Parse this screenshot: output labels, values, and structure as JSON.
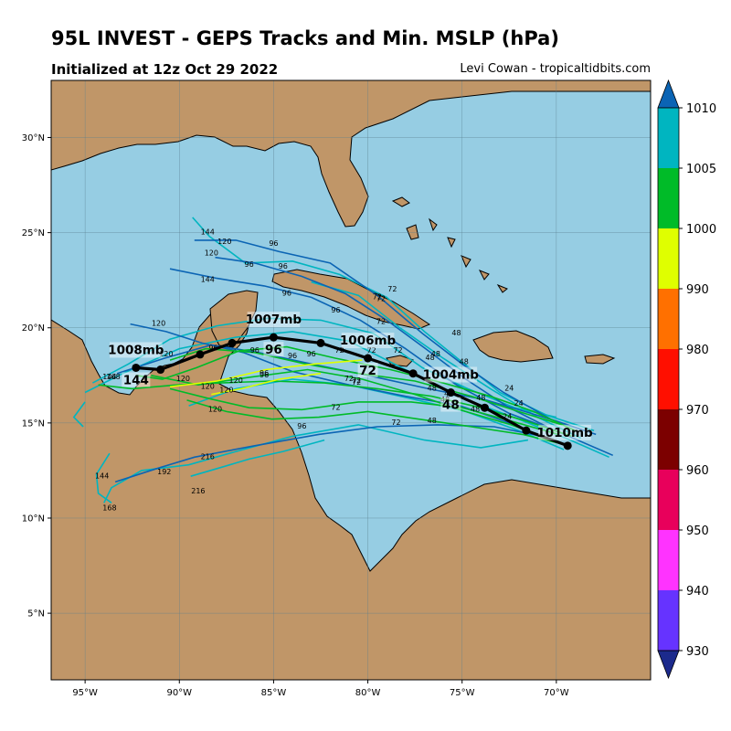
{
  "header": {
    "title": "95L INVEST - GEPS Tracks and Min. MSLP (hPa)",
    "init": "Initialized at 12z Oct 29 2022",
    "credit": "Levi Cowan - tropicaltidbits.com"
  },
  "map": {
    "lon_range": [
      -96.8,
      -65.0
    ],
    "lat_range": [
      1.5,
      33.0
    ],
    "lon_ticks": [
      {
        "v": -95,
        "label": "95°W"
      },
      {
        "v": -90,
        "label": "90°W"
      },
      {
        "v": -85,
        "label": "85°W"
      },
      {
        "v": -80,
        "label": "80°W"
      },
      {
        "v": -75,
        "label": "75°W"
      },
      {
        "v": -70,
        "label": "70°W"
      }
    ],
    "lat_ticks": [
      {
        "v": 30,
        "label": "30°N"
      },
      {
        "v": 25,
        "label": "25°N"
      },
      {
        "v": 20,
        "label": "20°N"
      },
      {
        "v": 15,
        "label": "15°N"
      },
      {
        "v": 10,
        "label": "10°N"
      },
      {
        "v": 5,
        "label": "5°N"
      }
    ],
    "colors": {
      "ocean": "#96cde3",
      "land": "#c09668",
      "grid": "#5a7f8f"
    }
  },
  "colorbar": {
    "levels": [
      "1010",
      "1005",
      "1000",
      "990",
      "980",
      "970",
      "960",
      "950",
      "940",
      "930"
    ],
    "colors": [
      "#0b64b4",
      "#00b5c0",
      "#00bb28",
      "#dfff00",
      "#ff7000",
      "#ff0f00",
      "#7c0000",
      "#e8005b",
      "#ff33ff",
      "#6633ff",
      "#1c2a8c"
    ]
  },
  "ensemble_mean": {
    "points": [
      {
        "lon": -69.4,
        "lat": 13.8,
        "mb": "1010mb",
        "hour": ""
      },
      {
        "lon": -71.6,
        "lat": 14.6,
        "mb": "",
        "hour": ""
      },
      {
        "lon": -73.8,
        "lat": 15.8,
        "mb": "",
        "hour": ""
      },
      {
        "lon": -75.6,
        "lat": 16.6,
        "mb": "1004mb",
        "hour": "48"
      },
      {
        "lon": -77.6,
        "lat": 17.6,
        "mb": "",
        "hour": ""
      },
      {
        "lon": -80.0,
        "lat": 18.4,
        "mb": "1006mb",
        "hour": "72"
      },
      {
        "lon": -82.5,
        "lat": 19.2,
        "mb": "",
        "hour": ""
      },
      {
        "lon": -85.0,
        "lat": 19.5,
        "mb": "1007mb",
        "hour": "96"
      },
      {
        "lon": -87.2,
        "lat": 19.2,
        "mb": "",
        "hour": ""
      },
      {
        "lon": -88.9,
        "lat": 18.6,
        "mb": "",
        "hour": ""
      },
      {
        "lon": -91.0,
        "lat": 17.8,
        "mb": "",
        "hour": ""
      },
      {
        "lon": -92.3,
        "lat": 17.9,
        "mb": "1008mb",
        "hour": "144"
      }
    ]
  },
  "tracks": [
    {
      "color": "#00b5c0",
      "pts": [
        [
          -67.2,
          13.2
        ],
        [
          -69.5,
          14.2
        ],
        [
          -72,
          15.2
        ],
        [
          -75,
          16.3
        ],
        [
          -78,
          17.8
        ],
        [
          -81,
          19.3
        ],
        [
          -84,
          19.8
        ],
        [
          -87,
          19.5
        ],
        [
          -90,
          18.9
        ],
        [
          -93,
          17.6
        ],
        [
          -95,
          16.6
        ]
      ],
      "labels": [
        [
          -72.6,
          15.2,
          "24"
        ],
        [
          -75.7,
          16.4,
          "48"
        ],
        [
          -79.8,
          18.7,
          "72"
        ]
      ]
    },
    {
      "color": "#00b5c0",
      "pts": [
        [
          -68,
          14.6
        ],
        [
          -70.5,
          15.4
        ],
        [
          -73,
          16.6
        ],
        [
          -75,
          18.2
        ],
        [
          -77,
          19.8
        ],
        [
          -79,
          21.6
        ],
        [
          -81.5,
          22.8
        ],
        [
          -84,
          23.5
        ],
        [
          -86.5,
          23.4
        ],
        [
          -88.4,
          24.8
        ],
        [
          -89.3,
          25.8
        ]
      ],
      "labels": [
        [
          -75.3,
          19.6,
          "48"
        ],
        [
          -78.7,
          21.9,
          "72"
        ],
        [
          -84.5,
          23.1,
          "96"
        ],
        [
          -88.5,
          24.9,
          "144"
        ]
      ]
    },
    {
      "color": "#00b5c0",
      "pts": [
        [
          -68.7,
          14.2
        ],
        [
          -71,
          15.3
        ],
        [
          -73.5,
          16.8
        ],
        [
          -76,
          18.4
        ],
        [
          -78.3,
          20.0
        ],
        [
          -80.5,
          21.7
        ],
        [
          -83,
          22.4
        ]
      ],
      "labels": [
        [
          -72.5,
          16.7,
          "24"
        ],
        [
          -76.4,
          18.5,
          "48"
        ],
        [
          -79.5,
          21.5,
          "72"
        ]
      ]
    },
    {
      "color": "#00b5c0",
      "pts": [
        [
          -69.6,
          13.6
        ],
        [
          -72,
          14.6
        ],
        [
          -74.8,
          15.6
        ],
        [
          -77.8,
          16.3
        ],
        [
          -81,
          17.0
        ],
        [
          -84,
          17.3
        ],
        [
          -87,
          16.8
        ],
        [
          -89.5,
          15.9
        ]
      ],
      "labels": [
        [
          -74.3,
          15.6,
          "48"
        ],
        [
          -80.6,
          17.1,
          "72"
        ],
        [
          -85.5,
          17.4,
          "96"
        ]
      ]
    },
    {
      "color": "#00b5c0",
      "pts": [
        [
          -71.5,
          14.1
        ],
        [
          -74,
          13.7
        ],
        [
          -77,
          14.1
        ],
        [
          -80.5,
          14.9
        ],
        [
          -84,
          14.3
        ],
        [
          -87,
          13.5
        ],
        [
          -89.5,
          12.8
        ],
        [
          -92,
          12.5
        ],
        [
          -93.6,
          11.6
        ],
        [
          -94,
          10.8
        ]
      ],
      "labels": [
        [
          -83.5,
          14.7,
          "96"
        ],
        [
          -89.0,
          11.3,
          "216"
        ],
        [
          -93.7,
          10.4,
          "168"
        ]
      ]
    },
    {
      "color": "#00b5c0",
      "pts": [
        [
          -70.0,
          15.3
        ],
        [
          -72.2,
          15.8
        ],
        [
          -74.7,
          16.8
        ],
        [
          -77.1,
          17.9
        ],
        [
          -79.7,
          19.7
        ],
        [
          -82.5,
          20.4
        ],
        [
          -85.3,
          20.5
        ],
        [
          -88,
          20.1
        ],
        [
          -90.5,
          19.4
        ],
        [
          -92.7,
          18.1
        ],
        [
          -94.6,
          17.1
        ]
      ],
      "labels": [
        [
          -72.0,
          15.9,
          "24"
        ],
        [
          -76.7,
          18.3,
          "48"
        ],
        [
          -81.7,
          20.8,
          "96"
        ],
        [
          -93.7,
          17.3,
          "144"
        ]
      ]
    },
    {
      "color": "#0b64b4",
      "pts": [
        [
          -67.0,
          13.3
        ],
        [
          -69.8,
          14.5
        ],
        [
          -72.5,
          15.5
        ],
        [
          -75.3,
          17.0
        ],
        [
          -78,
          18.9
        ],
        [
          -80.4,
          20.4
        ],
        [
          -83,
          21.6
        ],
        [
          -85.5,
          22.2
        ],
        [
          -88.0,
          22.6
        ],
        [
          -90.5,
          23.1
        ]
      ],
      "labels": [
        [
          -78.4,
          18.7,
          "72"
        ],
        [
          -84.3,
          21.7,
          "96"
        ],
        [
          -88.5,
          22.4,
          "144"
        ]
      ]
    },
    {
      "color": "#0b64b4",
      "pts": [
        [
          -67.9,
          14.4
        ],
        [
          -70.3,
          15.2
        ],
        [
          -72.8,
          16.6
        ],
        [
          -75,
          18.1
        ],
        [
          -77.1,
          19.7
        ],
        [
          -79.5,
          21.7
        ],
        [
          -82,
          23.4
        ],
        [
          -84.7,
          24.0
        ],
        [
          -87.0,
          24.6
        ],
        [
          -89.2,
          24.6
        ]
      ],
      "labels": [
        [
          -74.9,
          18.1,
          "48"
        ],
        [
          -79.3,
          21.4,
          "72"
        ],
        [
          -85.0,
          24.3,
          "96"
        ],
        [
          -87.6,
          24.4,
          "120"
        ]
      ]
    },
    {
      "color": "#0b64b4",
      "pts": [
        [
          -70.5,
          14.8
        ],
        [
          -72.5,
          15.8
        ],
        [
          -74.8,
          17.3
        ],
        [
          -76.8,
          18.8
        ],
        [
          -79,
          20.4
        ],
        [
          -81.2,
          21.8
        ],
        [
          -83.5,
          22.7
        ],
        [
          -86,
          23.4
        ],
        [
          -88.1,
          23.7
        ]
      ],
      "labels": [
        [
          -79.3,
          20.2,
          "72"
        ],
        [
          -86.3,
          23.2,
          "96"
        ],
        [
          -88.3,
          23.8,
          "120"
        ]
      ]
    },
    {
      "color": "#0b64b4",
      "pts": [
        [
          -70.0,
          14.0
        ],
        [
          -72.5,
          15.0
        ],
        [
          -75.1,
          15.9
        ],
        [
          -78,
          16.4
        ],
        [
          -81,
          17.0
        ],
        [
          -84,
          17.7
        ],
        [
          -86.6,
          18.7
        ],
        [
          -88.8,
          19.2
        ],
        [
          -90.7,
          19.8
        ],
        [
          -92.6,
          20.2
        ]
      ],
      "labels": [
        [
          -81.0,
          17.2,
          "72"
        ],
        [
          -86.0,
          18.7,
          "96"
        ],
        [
          -91.1,
          20.1,
          "120"
        ]
      ]
    },
    {
      "color": "#0b64b4",
      "pts": [
        [
          -70.8,
          14.3
        ],
        [
          -73.3,
          14.8
        ],
        [
          -76.3,
          14.9
        ],
        [
          -79.5,
          14.8
        ],
        [
          -82.6,
          14.4
        ],
        [
          -86,
          13.8
        ],
        [
          -89.2,
          13.2
        ],
        [
          -91.2,
          12.6
        ],
        [
          -93.4,
          11.9
        ]
      ],
      "labels": [
        [
          -78.5,
          14.9,
          "72"
        ],
        [
          -94.1,
          12.1,
          "144"
        ],
        [
          -90.8,
          12.3,
          "192"
        ]
      ]
    },
    {
      "color": "#0b64b4",
      "pts": [
        [
          -68.5,
          14.6
        ],
        [
          -71,
          15.4
        ],
        [
          -73.7,
          16.2
        ],
        [
          -76.8,
          16.8
        ],
        [
          -80,
          17.5
        ],
        [
          -83,
          18.1
        ],
        [
          -85.8,
          18.7
        ],
        [
          -88.3,
          19.1
        ],
        [
          -90.8,
          18.4
        ],
        [
          -93.3,
          17.6
        ]
      ],
      "labels": [
        [
          -84.0,
          18.4,
          "96"
        ],
        [
          -90.7,
          18.5,
          "120"
        ]
      ]
    },
    {
      "color": "#00bb28",
      "pts": [
        [
          -69,
          14.6
        ],
        [
          -71.2,
          15.6
        ],
        [
          -73.5,
          16.4
        ],
        [
          -76,
          17.1
        ],
        [
          -78.8,
          17.8
        ],
        [
          -81.7,
          18.4
        ],
        [
          -84.3,
          19.0
        ],
        [
          -86.8,
          18.8
        ],
        [
          -89.1,
          17.9
        ],
        [
          -90.9,
          17.3
        ],
        [
          -92.3,
          17.5
        ]
      ],
      "labels": [
        [
          -81.5,
          18.7,
          "72"
        ],
        [
          -88.2,
          18.8,
          "96"
        ]
      ]
    },
    {
      "color": "#00bb28",
      "pts": [
        [
          -69.7,
          14.9
        ],
        [
          -72,
          15.6
        ],
        [
          -74.5,
          16.4
        ],
        [
          -77.5,
          17.2
        ],
        [
          -80.5,
          17.6
        ],
        [
          -83.3,
          18.1
        ],
        [
          -86,
          18.7
        ],
        [
          -88.6,
          18.9
        ],
        [
          -90.5,
          18.3
        ]
      ],
      "labels": [
        [
          -74.0,
          16.2,
          "48"
        ],
        [
          -83.0,
          18.5,
          "96"
        ]
      ]
    },
    {
      "color": "#00bb28",
      "pts": [
        [
          -69.2,
          14.3
        ],
        [
          -71.6,
          15.1
        ],
        [
          -74,
          15.8
        ],
        [
          -76.6,
          16.4
        ],
        [
          -79.5,
          16.8
        ],
        [
          -82.3,
          17.1
        ],
        [
          -85.1,
          17.2
        ],
        [
          -87.8,
          17.1
        ],
        [
          -90.1,
          17.0
        ],
        [
          -92.5,
          16.8
        ],
        [
          -94.3,
          17.0
        ]
      ],
      "labels": [
        [
          -76.6,
          16.7,
          "48"
        ],
        [
          -85.5,
          17.5,
          "96"
        ],
        [
          -89.8,
          17.2,
          "120"
        ],
        [
          -93.5,
          17.3,
          "168"
        ]
      ]
    },
    {
      "color": "#00bb28",
      "pts": [
        [
          -69.9,
          14.4
        ],
        [
          -72.4,
          15.1
        ],
        [
          -75,
          15.8
        ],
        [
          -77.7,
          16.1
        ],
        [
          -80.5,
          16.1
        ],
        [
          -83.5,
          15.7
        ],
        [
          -86.3,
          15.8
        ],
        [
          -88.5,
          16.3
        ],
        [
          -90.5,
          16.8
        ]
      ],
      "labels": [
        [
          -75.9,
          16.1,
          "48"
        ],
        [
          -87.5,
          16.6,
          "120"
        ]
      ]
    },
    {
      "color": "#00bb28",
      "pts": [
        [
          -69.3,
          13.8
        ],
        [
          -71.8,
          14.4
        ],
        [
          -74.5,
          14.8
        ],
        [
          -77.3,
          15.2
        ],
        [
          -80,
          15.6
        ],
        [
          -82.6,
          15.3
        ],
        [
          -85.1,
          15.2
        ],
        [
          -87.5,
          15.6
        ],
        [
          -89.6,
          16.2
        ]
      ],
      "labels": [
        [
          -76.6,
          15.0,
          "48"
        ],
        [
          -81.7,
          15.7,
          "72"
        ],
        [
          -88.1,
          15.6,
          "120"
        ]
      ]
    },
    {
      "color": "#00bb28",
      "pts": [
        [
          -70.2,
          14.1
        ],
        [
          -72.4,
          14.9
        ],
        [
          -74.8,
          15.6
        ],
        [
          -77.5,
          16.5
        ],
        [
          -80.3,
          17.3
        ],
        [
          -83.2,
          17.8
        ],
        [
          -86.3,
          17.4
        ],
        [
          -89.0,
          17.0
        ],
        [
          -91.5,
          17.5
        ]
      ],
      "labels": [
        [
          -80.6,
          17.0,
          "72"
        ],
        [
          -88.5,
          16.8,
          "120"
        ]
      ]
    },
    {
      "color": "#dfff00",
      "pts": [
        [
          -80.3,
          18.3
        ],
        [
          -82.8,
          18.1
        ],
        [
          -85.4,
          17.8
        ],
        [
          -88.0,
          17.2
        ],
        [
          -90.5,
          16.9
        ]
      ],
      "labels": [
        [
          -87.0,
          17.1,
          "120"
        ]
      ]
    },
    {
      "color": "#dfff00",
      "pts": [
        [
          -82.5,
          17.6
        ],
        [
          -84.7,
          17.3
        ],
        [
          -86.7,
          16.8
        ],
        [
          -88.3,
          16.5
        ]
      ],
      "labels": []
    },
    {
      "color": "#00b5c0",
      "pts": [
        [
          -82.3,
          14.1
        ],
        [
          -84.5,
          13.5
        ],
        [
          -86.3,
          13.1
        ],
        [
          -88.0,
          12.6
        ],
        [
          -89.4,
          12.2
        ]
      ],
      "labels": [
        [
          -88.5,
          13.1,
          "216"
        ]
      ]
    },
    {
      "color": "#00b5c0",
      "pts": [
        [
          -93.7,
          13.4
        ],
        [
          -94.4,
          12.3
        ],
        [
          -94.3,
          11.3
        ],
        [
          -93.6,
          10.8
        ]
      ],
      "labels": []
    },
    {
      "color": "#00b5c0",
      "pts": [
        [
          -95.0,
          16.1
        ],
        [
          -95.6,
          15.3
        ],
        [
          -95.1,
          14.8
        ]
      ],
      "labels": []
    }
  ]
}
